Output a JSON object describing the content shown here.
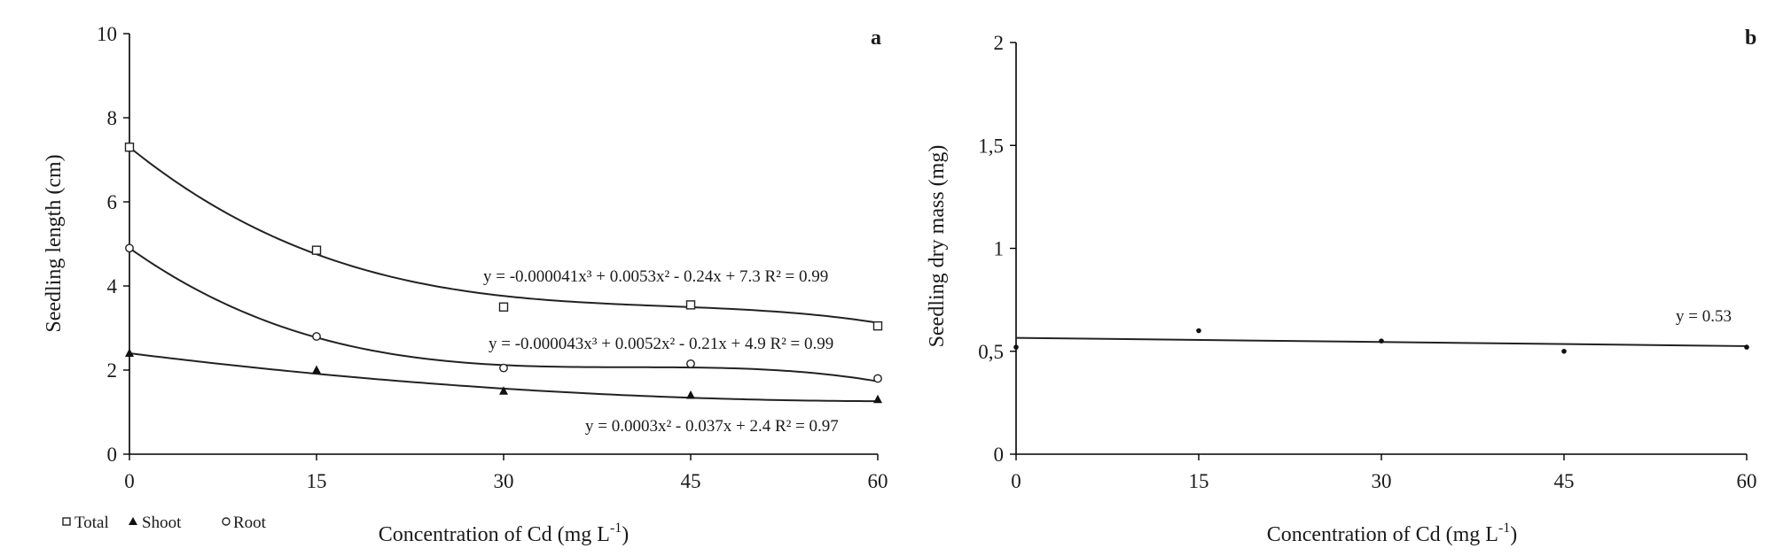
{
  "chart_data": [
    {
      "panel_label": "a",
      "type": "scatter",
      "xlabel": "Concentration of Cd (mg L",
      "xlabel_sup": "-1",
      "xlabel_end": ")",
      "ylabel": "Seedling length (cm)",
      "xlim": [
        0,
        60
      ],
      "ylim": [
        0,
        10
      ],
      "x_ticks": [
        "0",
        "15",
        "30",
        "45",
        "60"
      ],
      "y_ticks": [
        "0",
        "2",
        "4",
        "6",
        "8",
        "10"
      ],
      "legend_position": "bottom-left",
      "series": [
        {
          "name": "Total",
          "marker": "open-square",
          "x": [
            0,
            15,
            30,
            45,
            60
          ],
          "y": [
            7.3,
            4.85,
            3.5,
            3.55,
            3.05
          ],
          "fit": [
            -4.1e-05,
            0.0053,
            -0.24,
            7.3
          ],
          "equation": "y = -0.000041x³ + 0.0053x² - 0.24x + 7.3   R² = 0.99"
        },
        {
          "name": "Shoot",
          "marker": "filled-triangle",
          "x": [
            0,
            15,
            30,
            45,
            60
          ],
          "y": [
            2.4,
            2.0,
            1.5,
            1.4,
            1.3
          ],
          "fit": [
            0,
            0.0003,
            -0.037,
            2.4
          ],
          "equation": "y = 0.0003x² - 0.037x + 2.4   R² = 0.97"
        },
        {
          "name": "Root",
          "marker": "open-circle",
          "x": [
            0,
            15,
            30,
            45,
            60
          ],
          "y": [
            4.9,
            2.8,
            2.05,
            2.15,
            1.8
          ],
          "fit": [
            -4.3e-05,
            0.0052,
            -0.21,
            4.9
          ],
          "equation": "y = -0.000043x³ + 0.0052x² - 0.21x + 4.9   R² = 0.99"
        }
      ]
    },
    {
      "panel_label": "b",
      "type": "scatter",
      "xlabel": "Concentration of Cd (mg L",
      "xlabel_sup": "-1",
      "xlabel_end": ")",
      "ylabel": "Seedling dry mass (mg)",
      "xlim": [
        0,
        60
      ],
      "ylim": [
        0,
        2
      ],
      "x_ticks": [
        "0",
        "15",
        "30",
        "45",
        "60"
      ],
      "y_ticks": [
        "0",
        "0,5",
        "1",
        "1,5",
        "2"
      ],
      "series": [
        {
          "marker": "dot",
          "x": [
            0,
            15,
            30,
            45,
            60
          ],
          "y": [
            0.52,
            0.6,
            0.55,
            0.5,
            0.52
          ],
          "fit_line": [
            0.565,
            0.525
          ],
          "equation": "y = 0.53"
        }
      ]
    }
  ]
}
